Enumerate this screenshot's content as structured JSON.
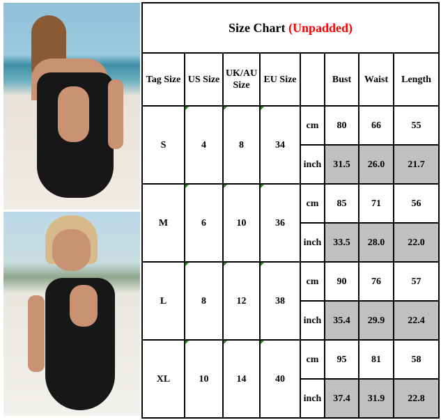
{
  "title": {
    "main": "Size Chart",
    "note": "(Unpadded)",
    "note_color": "#ff0000"
  },
  "headers": [
    "Tag Size",
    "US Size",
    "UK/AU Size",
    "EU Size",
    "",
    "Bust",
    "Waist",
    "Length"
  ],
  "units": {
    "cm": "cm",
    "inch": "inch"
  },
  "inch_fill_color": "#c0c0c0",
  "rows": [
    {
      "tag": "S",
      "us": "4",
      "uk": "8",
      "eu": "34",
      "cm": [
        "80",
        "66",
        "55"
      ],
      "inch": [
        "31.5",
        "26.0",
        "21.7"
      ]
    },
    {
      "tag": "M",
      "us": "6",
      "uk": "10",
      "eu": "36",
      "cm": [
        "85",
        "71",
        "56"
      ],
      "inch": [
        "33.5",
        "28.0",
        "22.0"
      ]
    },
    {
      "tag": "L",
      "us": "8",
      "uk": "12",
      "eu": "38",
      "cm": [
        "90",
        "76",
        "57"
      ],
      "inch": [
        "35.4",
        "29.9",
        "22.4"
      ]
    },
    {
      "tag": "XL",
      "us": "10",
      "uk": "14",
      "eu": "40",
      "cm": [
        "95",
        "81",
        "58"
      ],
      "inch": [
        "37.4",
        "31.9",
        "22.8"
      ]
    }
  ]
}
